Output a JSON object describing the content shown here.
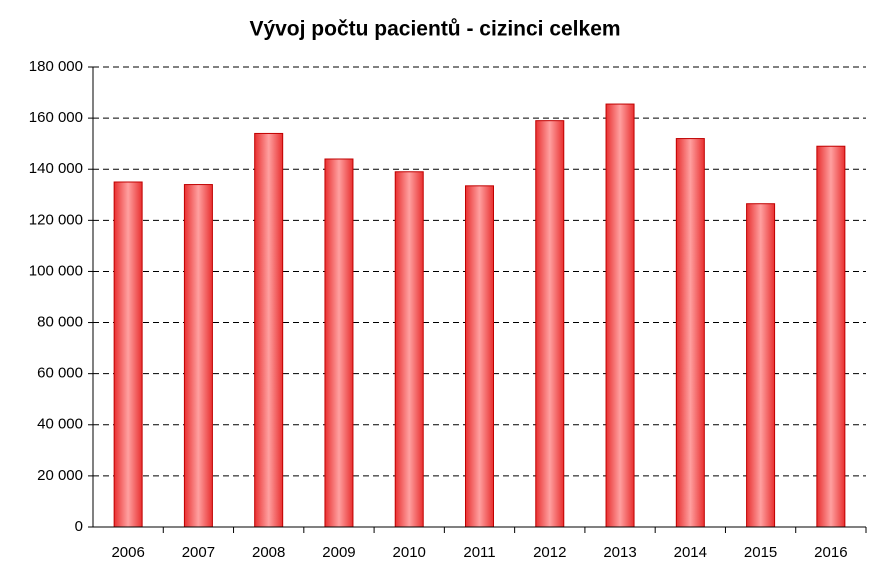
{
  "chart_data": {
    "type": "bar",
    "title": "Vývoj počtu pacientů - cizinci celkem",
    "categories": [
      "2006",
      "2007",
      "2008",
      "2009",
      "2010",
      "2011",
      "2012",
      "2013",
      "2014",
      "2015",
      "2016"
    ],
    "values": [
      135000,
      134000,
      154000,
      144000,
      139000,
      133500,
      159000,
      165500,
      152000,
      126500,
      149000
    ],
    "color": "#ffa0a0",
    "ylim": [
      0,
      180000
    ],
    "yticks": [
      0,
      {
        "value": 20000,
        "label": "20 000"
      },
      {
        "value": 40000,
        "label": "40 000"
      },
      {
        "value": 60000,
        "label": "60 000"
      },
      {
        "value": 80000,
        "label": "80 000"
      },
      {
        "value": 100000,
        "label": "100 000"
      },
      {
        "value": 120000,
        "label": "120 000"
      },
      {
        "value": 140000,
        "label": "140 000"
      },
      {
        "value": 160000,
        "label": "160 000"
      },
      {
        "value": 180000,
        "label": "180 000"
      }
    ],
    "grid": true
  }
}
